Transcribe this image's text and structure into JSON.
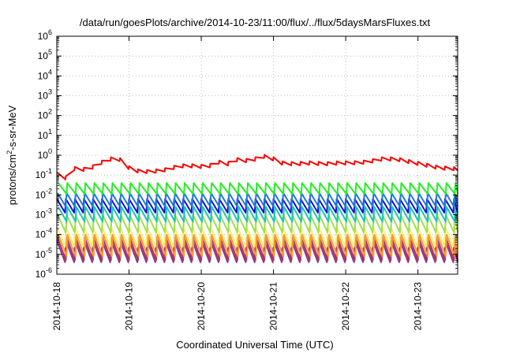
{
  "chart_data": {
    "type": "line",
    "title": "/data/run/goesPlots/archive/2014-10-23/11:00/flux/../flux/5daysMarsFluxes.txt",
    "xlabel": "Coordinated Universal Time (UTC)",
    "ylabel": {
      "prefix": "protons/cm",
      "sup": "2",
      "suffix": "-s-sr-MeV"
    },
    "x_tick_labels": [
      "2014-10-18",
      "2014-10-19",
      "2014-10-20",
      "2014-10-21",
      "2014-10-22",
      "2014-10-23"
    ],
    "x_range_days": [
      0,
      5.55
    ],
    "y_tick_exponents": [
      -6,
      -5,
      -4,
      -3,
      -2,
      -1,
      0,
      1,
      2,
      3,
      4,
      5,
      6
    ],
    "y_tick_base": "10",
    "ylim_log10": [
      -6,
      6
    ],
    "y_scale": "log",
    "grid": true,
    "legend": "none",
    "sawtooth_period_days": 0.125,
    "series": [
      {
        "color": "#ff0000",
        "style": "envelope",
        "points_day_log10": [
          [
            0,
            -0.85
          ],
          [
            0.1,
            -1.0
          ],
          [
            0.16,
            -1.15
          ],
          [
            0.22,
            -0.55
          ],
          [
            0.3,
            -0.65
          ],
          [
            0.45,
            -0.6
          ],
          [
            0.6,
            -0.3
          ],
          [
            0.75,
            -0.1
          ],
          [
            0.8,
            0.05
          ],
          [
            0.9,
            -0.2
          ],
          [
            1.0,
            -0.55
          ],
          [
            1.1,
            -0.7
          ],
          [
            1.3,
            -0.75
          ],
          [
            1.5,
            -0.65
          ],
          [
            1.7,
            -0.45
          ],
          [
            1.9,
            -0.45
          ],
          [
            2.1,
            -0.5
          ],
          [
            2.2,
            -0.2
          ],
          [
            2.35,
            -0.4
          ],
          [
            2.45,
            -0.1
          ],
          [
            2.6,
            -0.2
          ],
          [
            2.75,
            -0.1
          ],
          [
            2.85,
            0.05
          ],
          [
            3.0,
            -0.1
          ],
          [
            3.1,
            -0.3
          ],
          [
            3.3,
            -0.35
          ],
          [
            3.5,
            -0.3
          ],
          [
            3.7,
            -0.35
          ],
          [
            3.9,
            -0.3
          ],
          [
            4.1,
            -0.3
          ],
          [
            4.3,
            -0.25
          ],
          [
            4.5,
            -0.1
          ],
          [
            4.7,
            -0.1
          ],
          [
            4.9,
            -0.25
          ],
          [
            5.1,
            -0.4
          ],
          [
            5.3,
            -0.55
          ],
          [
            5.55,
            -0.6
          ]
        ],
        "sawtooth_amplitude_log10": 0.35
      },
      {
        "color": "#22ee22",
        "style": "sawtooth",
        "peak_log10": -1.4,
        "trough_log10": -1.95
      },
      {
        "color": "#1f78d8",
        "style": "sawtooth",
        "peak_log10": -1.9,
        "trough_log10": -2.6
      },
      {
        "color": "#1010cc",
        "style": "sawtooth",
        "peak_log10": -2.2,
        "trough_log10": -2.9
      },
      {
        "color": "#19c3b8",
        "style": "sawtooth",
        "peak_log10": -2.6,
        "trough_log10": -3.35
      },
      {
        "color": "#9fe04a",
        "style": "sawtooth",
        "peak_log10": -3.0,
        "trough_log10": -3.9
      },
      {
        "color": "#f3f07a",
        "style": "sawtooth",
        "peak_log10": -3.6,
        "trough_log10": -4.6
      },
      {
        "color": "#ff9a2f",
        "style": "sawtooth",
        "peak_log10": -4.0,
        "trough_log10": -5.1
      },
      {
        "color": "#a8366e",
        "style": "sawtooth",
        "peak_log10": -4.15,
        "trough_log10": -5.3
      },
      {
        "color": "#8a3a8a",
        "style": "sawtooth",
        "peak_log10": -4.3,
        "trough_log10": -5.4
      }
    ]
  }
}
